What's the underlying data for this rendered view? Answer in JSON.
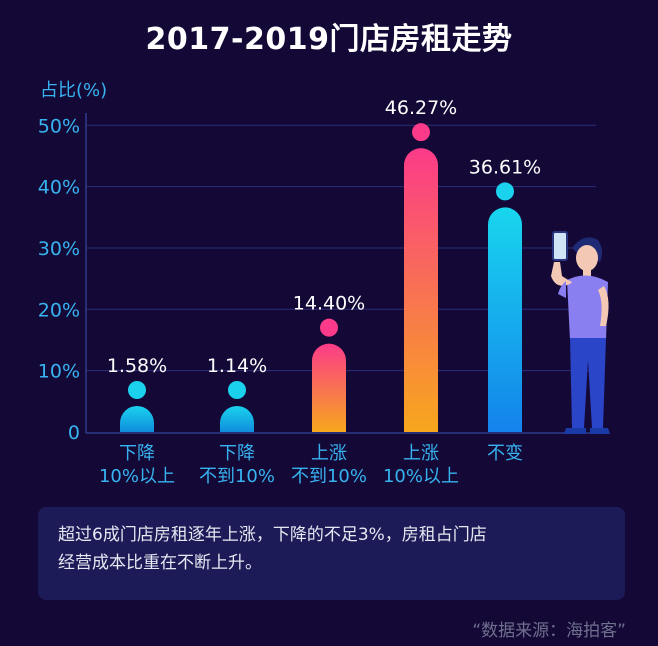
{
  "title": "2017-2019门店房租走势",
  "chart_data": {
    "type": "bar",
    "title": "2017-2019门店房租走势",
    "ylabel": "占比(%)",
    "yticks": [
      "0",
      "10%",
      "20%",
      "30%",
      "40%",
      "50%"
    ],
    "ylim": [
      0,
      52
    ],
    "categories": [
      [
        "下降",
        "10%以上"
      ],
      [
        "下降",
        "不到10%"
      ],
      [
        "上涨",
        "不到10%"
      ],
      [
        "上涨",
        "10%以上"
      ],
      [
        "不变"
      ]
    ],
    "values": [
      1.58,
      1.14,
      14.4,
      46.27,
      36.61
    ],
    "value_labels": [
      "1.58%",
      "1.14%",
      "14.40%",
      "46.27%",
      "36.61%"
    ],
    "series_style": [
      "decline",
      "decline",
      "rise",
      "rise",
      "unchanged"
    ],
    "grid": true
  },
  "colors": {
    "background": "#140836",
    "axis_text": "#37b3f0",
    "decline_top": "#1bd2ee",
    "decline_bottom": "#0f8ddc",
    "rise_top": "#fb3b89",
    "rise_bottom": "#f7a71d",
    "unchanged_top": "#18d6ee",
    "unchanged_bottom": "#1483ec",
    "note_bg": "#1c1a57"
  },
  "note": {
    "text_line1": "超过6成门店房租逐年上涨，下降的不足3%，房租占门店",
    "text_line2": "经营成本比重在不断上升。"
  },
  "source": "“数据来源：海拍客”"
}
